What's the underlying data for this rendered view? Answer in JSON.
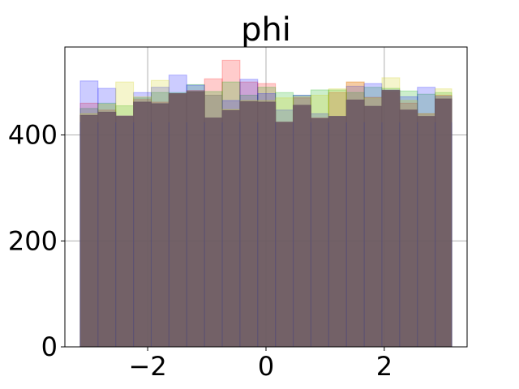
{
  "chart_data": {
    "type": "bar",
    "title": "phi",
    "xlabel": "",
    "ylabel": "",
    "xlim": [
      -3.4,
      3.4
    ],
    "ylim": [
      0,
      566
    ],
    "xticks": [
      -2,
      0,
      2
    ],
    "xtick_labels": [
      "−2",
      "0",
      "2"
    ],
    "yticks": [
      0,
      200,
      400
    ],
    "ytick_labels": [
      "0",
      "200",
      "400"
    ],
    "grid": true,
    "bin_edges": [
      -3.14,
      -2.84,
      -2.54,
      -2.24,
      -1.94,
      -1.64,
      -1.34,
      -1.04,
      -0.74,
      -0.44,
      -0.14,
      0.16,
      0.46,
      0.76,
      1.06,
      1.36,
      1.66,
      1.96,
      2.26,
      2.56,
      2.86,
      3.14
    ],
    "series": [
      {
        "color": "#ff0000",
        "values": [
          460,
          447,
          436,
          467,
          462,
          476,
          484,
          506,
          541,
          500,
          497,
          424,
          470,
          432,
          480,
          500,
          471,
          480,
          460,
          440,
          475
        ]
      },
      {
        "color": "#00aa00",
        "values": [
          450,
          460,
          455,
          470,
          480,
          480,
          495,
          482,
          500,
          475,
          490,
          480,
          475,
          485,
          485,
          480,
          490,
          488,
          483,
          477,
          480
        ]
      },
      {
        "color": "#0000ff",
        "values": [
          502,
          488,
          436,
          480,
          490,
          513,
          494,
          475,
          465,
          505,
          478,
          447,
          475,
          440,
          435,
          492,
          497,
          485,
          472,
          490,
          473
        ]
      },
      {
        "color": "#cccc00",
        "values": [
          440,
          458,
          500,
          472,
          503,
          478,
          482,
          475,
          448,
          465,
          465,
          470,
          472,
          475,
          487,
          500,
          470,
          508,
          465,
          440,
          487
        ]
      },
      {
        "color": "#6d5a63",
        "values": [
          437,
          443,
          435,
          462,
          459,
          478,
          482,
          432,
          446,
          463,
          462,
          424,
          456,
          431,
          435,
          466,
          454,
          484,
          447,
          435,
          468
        ]
      }
    ]
  }
}
